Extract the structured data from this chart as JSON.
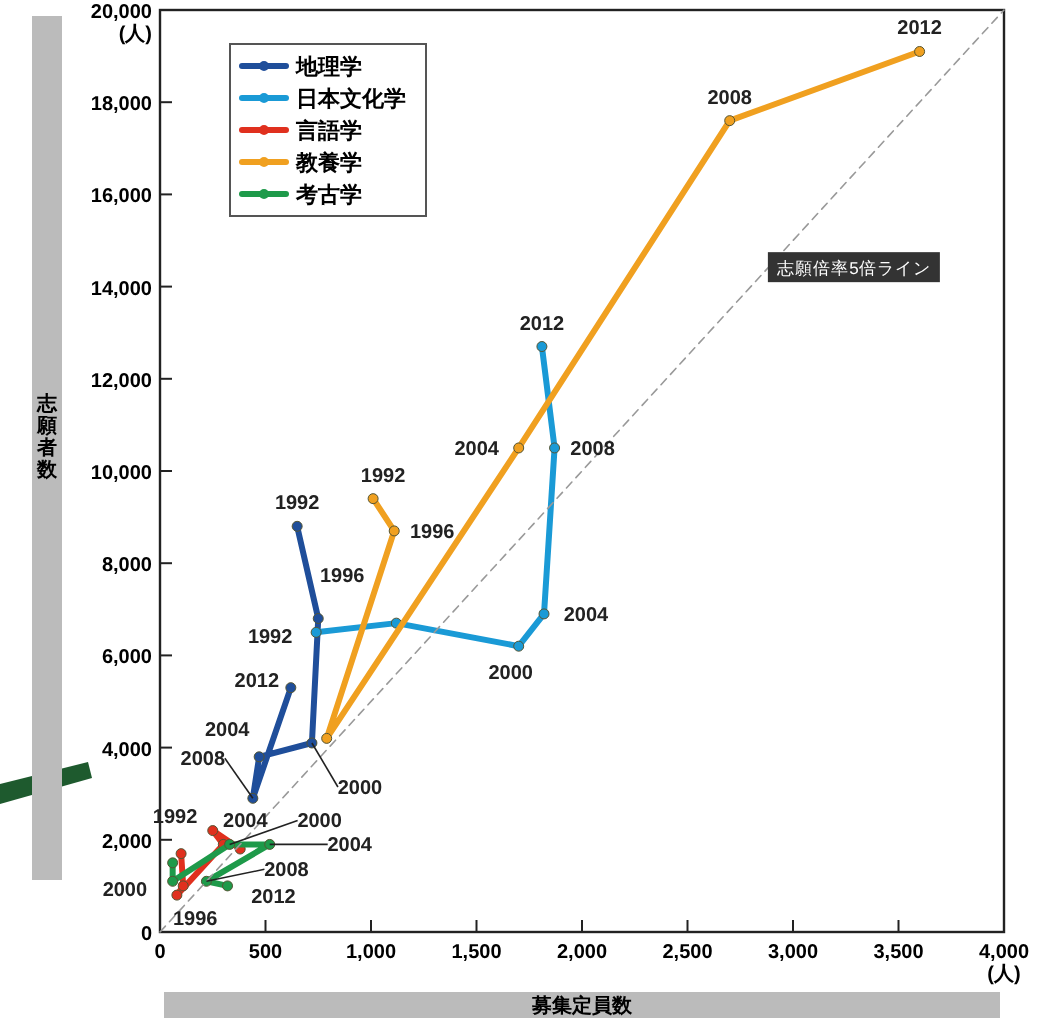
{
  "chart_data": {
    "type": "line",
    "xlabel": "募集定員数",
    "ylabel": "志願者数",
    "xlim": [
      0,
      4000
    ],
    "ylim": [
      0,
      20000
    ],
    "xticks": [
      0,
      500,
      {
        "value": 1000,
        "label": "1,000"
      },
      {
        "value": 1500,
        "label": "1,500"
      },
      {
        "value": 2000,
        "label": "2,000"
      },
      {
        "value": 2500,
        "label": "2,500"
      },
      {
        "value": 3000,
        "label": "3,000"
      },
      {
        "value": 3500,
        "label": "3,500"
      },
      {
        "value": 4000,
        "label": "4,000\n(人)"
      }
    ],
    "yticks": [
      0,
      {
        "value": 2000,
        "label": "2,000"
      },
      {
        "value": 4000,
        "label": "4,000"
      },
      {
        "value": 6000,
        "label": "6,000"
      },
      {
        "value": 8000,
        "label": "8,000"
      },
      {
        "value": 10000,
        "label": "10,000"
      },
      {
        "value": 12000,
        "label": "12,000"
      },
      {
        "value": 14000,
        "label": "14,000"
      },
      {
        "value": 16000,
        "label": "16,000"
      },
      {
        "value": 18000,
        "label": "18,000"
      },
      {
        "value": 20000,
        "label": "20,000\n(人)"
      }
    ],
    "grid": false,
    "legend": "top left",
    "marker": "circle",
    "line_style": "solid",
    "series": [
      {
        "name": "地理学",
        "color": "#1f4e9a",
        "x": [
          650,
          750,
          720,
          470,
          440,
          620
        ],
        "values": [
          8800,
          6800,
          4100,
          3800,
          2900,
          5300
        ]
      },
      {
        "name": "日本文化学",
        "color": "#1a9ad6",
        "x": [
          740,
          1120,
          1700,
          1820,
          1870,
          1810
        ],
        "values": [
          6500,
          6700,
          6200,
          6900,
          10500,
          12700
        ]
      },
      {
        "name": "言語学",
        "color": "#e0301e",
        "x": [
          100,
          110,
          80,
          300,
          250,
          380
        ],
        "values": [
          1700,
          1000,
          800,
          1900,
          2200,
          1800
        ]
      },
      {
        "name": "教養学",
        "color": "#f0a020",
        "x": [
          1010,
          1110,
          790,
          1700,
          2700,
          3600
        ],
        "values": [
          9400,
          8700,
          4200,
          10500,
          17600,
          19100
        ]
      },
      {
        "name": "考古学",
        "color": "#1e9a4a",
        "x": [
          60,
          60,
          330,
          520,
          220,
          320
        ],
        "values": [
          1500,
          1100,
          1900,
          1900,
          1100,
          1000
        ]
      },
      {
        "name": "志願倍率5倍ライン",
        "color": "#999999",
        "x": [
          0,
          4000
        ],
        "values": [
          0,
          20000
        ],
        "line_style": "dashed",
        "marker": "none"
      }
    ],
    "annotations": [
      {
        "text": "2012",
        "x": 3600,
        "y": 19100
      },
      {
        "text": "2008",
        "x": 2700,
        "y": 17600
      },
      {
        "text": "2012",
        "x": 1810,
        "y": 12700
      },
      {
        "text": "2004",
        "x": 1700,
        "y": 10500
      },
      {
        "text": "2008",
        "x": 1870,
        "y": 10500
      },
      {
        "text": "1992",
        "x": 1010,
        "y": 9400
      },
      {
        "text": "1996",
        "x": 1110,
        "y": 8700
      },
      {
        "text": "1992",
        "x": 650,
        "y": 8800
      },
      {
        "text": "1996",
        "x": 750,
        "y": 6800
      },
      {
        "text": "1992",
        "x": 740,
        "y": 6500
      },
      {
        "text": "2004",
        "x": 1820,
        "y": 6900
      },
      {
        "text": "2000",
        "x": 1700,
        "y": 6200
      },
      {
        "text": "2012",
        "x": 620,
        "y": 5300
      },
      {
        "text": "2004",
        "x": 470,
        "y": 3800
      },
      {
        "text": "2008",
        "x": 440,
        "y": 2900
      },
      {
        "text": "2000",
        "x": 720,
        "y": 4100
      },
      {
        "text": "1992",
        "x": 100,
        "y": 1700
      },
      {
        "text": "2004",
        "x": 300,
        "y": 1900
      },
      {
        "text": "2000",
        "x": 330,
        "y": 1900
      },
      {
        "text": "2004",
        "x": 520,
        "y": 1900
      },
      {
        "text": "2008",
        "x": 220,
        "y": 1100
      },
      {
        "text": "2012",
        "x": 320,
        "y": 1000
      },
      {
        "text": "1996",
        "x": 110,
        "y": 1000
      },
      {
        "text": "2000",
        "x": 80,
        "y": 800
      }
    ]
  }
}
